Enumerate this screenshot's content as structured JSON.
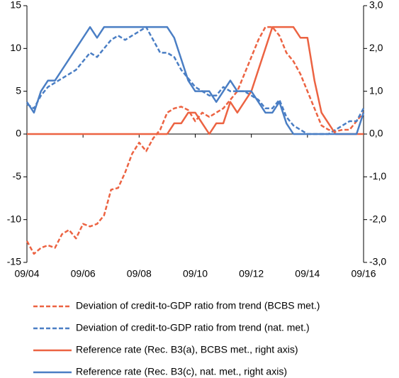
{
  "chart_data": {
    "type": "line",
    "categories": [
      "09/04",
      null,
      null,
      null,
      null,
      null,
      null,
      null,
      "09/06",
      null,
      null,
      null,
      null,
      null,
      null,
      null,
      "09/08",
      null,
      null,
      null,
      null,
      null,
      null,
      null,
      "09/10",
      null,
      null,
      null,
      null,
      null,
      null,
      null,
      "09/12",
      null,
      null,
      null,
      null,
      null,
      null,
      null,
      "09/14",
      null,
      null,
      null,
      null,
      null,
      null,
      null,
      "09/16"
    ],
    "ylim": [
      -15,
      15
    ],
    "yticks": [
      15,
      10,
      5,
      0,
      -5,
      -10,
      -15
    ],
    "y2lim": [
      -3,
      3
    ],
    "y2ticks": [
      {
        "value": 3,
        "label": "3,0"
      },
      {
        "value": 2,
        "label": "2,0"
      },
      {
        "value": 1,
        "label": "1,0"
      },
      {
        "value": 0,
        "label": "0,0"
      },
      {
        "value": -1,
        "label": "-1,0"
      },
      {
        "value": -2,
        "label": "-2,0"
      },
      {
        "value": -3,
        "label": "-3,0"
      }
    ],
    "series": [
      {
        "name": "Deviation of credit-to-GDP ratio from trend (BCBS met.)",
        "color": "#ec6342",
        "dash": true,
        "values": [
          -12.5,
          -14,
          -13.3,
          -13,
          -13.3,
          -11.7,
          -11.2,
          -12.2,
          -10.5,
          -10.8,
          -10.5,
          -9.5,
          -6.5,
          -6.3,
          -4.5,
          -2.3,
          -1,
          -2,
          -0.5,
          0.5,
          2.5,
          3,
          3.2,
          2.8,
          1.5,
          2.5,
          2,
          2.5,
          3,
          4,
          5,
          7,
          9,
          11,
          12.5,
          12.5,
          11.5,
          9.5,
          8.5,
          7,
          5,
          3,
          1,
          0.5,
          0.3,
          0.5,
          0.5,
          1.5,
          2.5
        ]
      },
      {
        "name": "Deviation of credit-to-GDP ratio from trend (nat. met.)",
        "color": "#4a7ec4",
        "dash": true,
        "values": [
          3.5,
          3,
          4.5,
          5.5,
          6,
          6.5,
          7,
          7.5,
          8.5,
          9.5,
          9,
          10,
          11,
          11.5,
          11,
          11.5,
          12,
          12.5,
          11,
          9.5,
          9.5,
          9,
          7.5,
          6.5,
          5.5,
          5,
          4.5,
          4.5,
          5.5,
          5,
          5,
          5,
          4.5,
          4,
          3,
          3,
          4,
          2,
          1,
          0.5,
          0,
          0,
          0,
          0,
          0.5,
          1,
          1.5,
          1.5,
          3
        ]
      },
      {
        "name": "Reference rate (Rec. B3(a), BCBS met., right axis)",
        "color": "#ec6342",
        "dash": false,
        "axis": "y2",
        "values": [
          0,
          0,
          0,
          0,
          0,
          0,
          0,
          0,
          0,
          0,
          0,
          0,
          0,
          0,
          0,
          0,
          0,
          0,
          0,
          0,
          0,
          0.25,
          0.25,
          0.5,
          0.5,
          0.25,
          0,
          0.25,
          0.25,
          0.75,
          0.5,
          0.75,
          1,
          1.5,
          2,
          2.5,
          2.5,
          2.5,
          2.5,
          2.25,
          2.25,
          1.25,
          0.5,
          0.25,
          0,
          0,
          0,
          0,
          0
        ]
      },
      {
        "name": "Reference rate (Rec. B3(c), nat. met., right axis)",
        "color": "#4a7ec4",
        "dash": false,
        "axis": "y2",
        "values": [
          0.75,
          0.5,
          1,
          1.25,
          1.25,
          1.5,
          1.75,
          2,
          2.25,
          2.5,
          2.25,
          2.5,
          2.5,
          2.5,
          2.5,
          2.5,
          2.5,
          2.5,
          2.5,
          2.5,
          2.5,
          2.25,
          1.75,
          1.25,
          1,
          1,
          1,
          0.75,
          1,
          1.25,
          1,
          1,
          1,
          0.75,
          0.5,
          0.5,
          0.75,
          0.25,
          0,
          0,
          0,
          0,
          0,
          0,
          0,
          0,
          0,
          0,
          0.5
        ]
      }
    ]
  }
}
